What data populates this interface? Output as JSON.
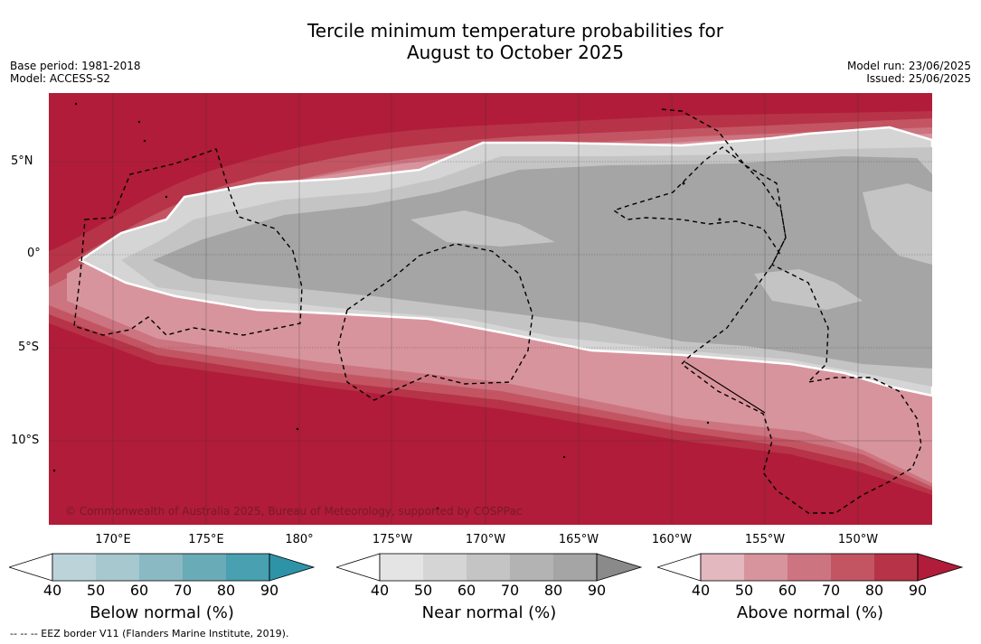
{
  "title_line1": "Tercile minimum temperature probabilities for",
  "title_line2": "August to October 2025",
  "base_period": "Base period: 1981-2018",
  "model": "Model: ACCESS-S2",
  "model_run": "Model run: 23/06/2025",
  "issued": "Issued: 25/06/2025",
  "lat_labels": [
    "5°N",
    "0°",
    "5°S",
    "10°S"
  ],
  "lon_labels": [
    "170°E",
    "175°E",
    "180°",
    "175°W",
    "170°W",
    "165°W",
    "160°W",
    "155°W",
    "150°W"
  ],
  "copyright": "© Commonwealth of Australia 2025, Bureau of Meteorology, supported by COSPPac",
  "colorbars": [
    {
      "label": "Below normal (%)",
      "ticks": [
        "40",
        "50",
        "60",
        "70",
        "80",
        "90"
      ],
      "colors": [
        "#ffffff",
        "#bcd3da",
        "#a6c8ce",
        "#8ab9c3",
        "#6aabb8",
        "#48a0b0",
        "#2f93a8"
      ]
    },
    {
      "label": "Near normal (%)",
      "ticks": [
        "40",
        "50",
        "60",
        "70",
        "80",
        "90"
      ],
      "colors": [
        "#ffffff",
        "#e4e4e4",
        "#d5d5d5",
        "#c4c4c4",
        "#b3b3b3",
        "#a5a5a5",
        "#8a8a8a"
      ]
    },
    {
      "label": "Above normal (%)",
      "ticks": [
        "40",
        "50",
        "60",
        "70",
        "80",
        "90"
      ],
      "colors": [
        "#ffffff",
        "#e3b8bf",
        "#d8949c",
        "#cc7480",
        "#c35563",
        "#b73347",
        "#b01c39"
      ]
    }
  ],
  "footnote": "--  --  -- EEZ border V11 (Flanders Marine Institute, 2019)."
}
